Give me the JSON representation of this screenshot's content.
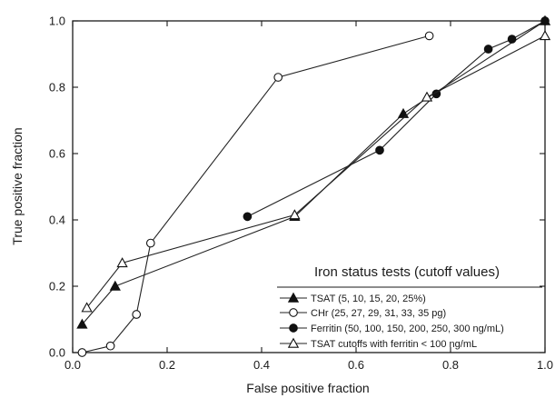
{
  "chart_data": {
    "type": "line",
    "xlabel": "False positive fraction",
    "ylabel": "True positive fraction",
    "xlim": [
      0,
      1
    ],
    "ylim": [
      0,
      1
    ],
    "xticks": [
      "0.0",
      "0.2",
      "0.4",
      "0.6",
      "0.8",
      "1.0"
    ],
    "yticks": [
      "0.0",
      "0.2",
      "0.4",
      "0.6",
      "0.8",
      "1.0"
    ],
    "grid": false,
    "legend": {
      "title": "Iron status tests (cutoff values)",
      "placement": "bottom-right"
    },
    "series": [
      {
        "name": "TSAT (5, 10, 15, 20, 25%)",
        "marker": "filled-triangle",
        "points": [
          [
            0.02,
            0.085
          ],
          [
            0.09,
            0.2
          ],
          [
            0.47,
            0.41
          ],
          [
            0.7,
            0.72
          ],
          [
            1.0,
            1.0
          ]
        ]
      },
      {
        "name": "CHr (25, 27, 29, 31, 33, 35 pg)",
        "marker": "open-circle",
        "points": [
          [
            0.02,
            0.0
          ],
          [
            0.08,
            0.02
          ],
          [
            0.135,
            0.115
          ],
          [
            0.165,
            0.33
          ],
          [
            0.435,
            0.83
          ],
          [
            0.755,
            0.955
          ]
        ]
      },
      {
        "name": "Ferritin (50, 100, 150, 200, 250, 300 ng/mL)",
        "marker": "filled-circle",
        "points": [
          [
            0.37,
            0.41
          ],
          [
            0.65,
            0.61
          ],
          [
            0.77,
            0.78
          ],
          [
            0.88,
            0.915
          ],
          [
            0.93,
            0.945
          ],
          [
            1.0,
            1.0
          ]
        ]
      },
      {
        "name": "TSAT cutoffs with ferritin < 100 ng/mL",
        "marker": "open-triangle",
        "points": [
          [
            0.03,
            0.135
          ],
          [
            0.105,
            0.27
          ],
          [
            0.47,
            0.415
          ],
          [
            0.75,
            0.77
          ],
          [
            1.0,
            0.955
          ]
        ]
      }
    ]
  }
}
